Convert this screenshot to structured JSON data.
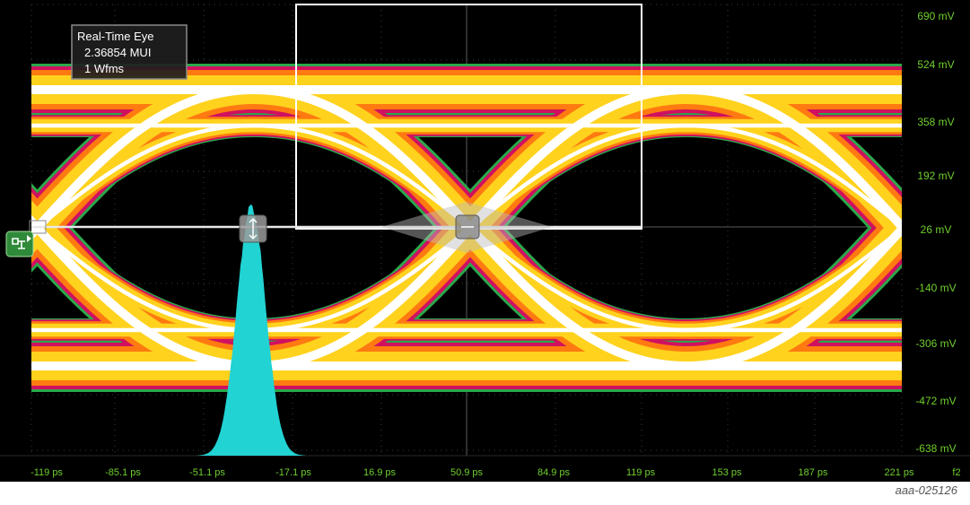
{
  "info_box": {
    "title": "Real-Time Eye",
    "mui": "2.36854 MUI",
    "wfms": "1 Wfms"
  },
  "axes": {
    "x_ticks": [
      "-119 ps",
      "-85.1 ps",
      "-51.1 ps",
      "-17.1 ps",
      "16.9 ps",
      "50.9 ps",
      "84.9 ps",
      "119 ps",
      "153 ps",
      "187 ps",
      "221 ps"
    ],
    "y_ticks": [
      "690 mV",
      "524 mV",
      "358 mV",
      "192 mV",
      "26 mV",
      "-140 mV",
      "-306 mV",
      "-472 mV",
      "-638 mV"
    ],
    "corner_label": "f2"
  },
  "figure_id": "aaa-025126",
  "colors": {
    "background": "#000000",
    "grid": "#3a3a3a",
    "axis_text": "#6fce2d",
    "histogram": "#22d3d3",
    "zoom_box": "#ffffff",
    "eye_outer": "#2aa84a",
    "eye_mid": "#d01060",
    "eye_orange": "#ff7a10",
    "eye_yellow": "#ffd21e",
    "eye_core": "#ffffff"
  },
  "icons": {
    "left_marker": "ground-reference-icon",
    "cursor_a": "cursor-handle-icon",
    "cursor_b": "cursor-handle-icon"
  }
}
